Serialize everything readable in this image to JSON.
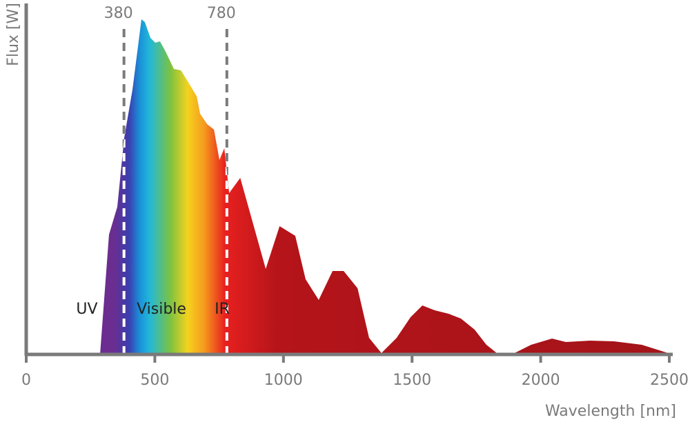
{
  "chart_data": {
    "type": "area",
    "x_label": "Wavelength [nm]",
    "y_label": "Flux [W]",
    "x": [
      287,
      322,
      354,
      381,
      413,
      448,
      461,
      483,
      502,
      520,
      542,
      574,
      601,
      628,
      663,
      676,
      703,
      730,
      751,
      770,
      789,
      832,
      931,
      985,
      1046,
      1086,
      1137,
      1191,
      1234,
      1288,
      1333,
      1381,
      1440,
      1494,
      1540,
      1588,
      1642,
      1690,
      1743,
      1789,
      1829,
      1888,
      1963,
      2044,
      2098,
      2192,
      2285,
      2393,
      2495
    ],
    "series": [
      {
        "name": "Flux",
        "color": "#a31419",
        "values": [
          0,
          34.8,
          42.8,
          62.8,
          76.8,
          97.2,
          96.4,
          91.8,
          90.4,
          90.8,
          87.8,
          82.8,
          82.4,
          79.2,
          74.8,
          69.8,
          66.8,
          65.2,
          56.4,
          59.8,
          46.8,
          51.2,
          24.8,
          37.2,
          34.4,
          21.8,
          15.8,
          24.2,
          24.2,
          19.2,
          4.8,
          0.4,
          4.8,
          10.8,
          14.2,
          12.8,
          11.8,
          10.4,
          7.2,
          2.8,
          0.4,
          0,
          2.8,
          4.6,
          3.6,
          4,
          3.8,
          2.8,
          0.4
        ]
      }
    ],
    "xlim": [
      0,
      2500
    ],
    "xticks": [
      0,
      500,
      1000,
      1500,
      2000,
      2500
    ],
    "ylim": [
      0,
      100
    ],
    "markers": [
      380,
      780
    ],
    "region_labels": [
      "UV",
      "Visible",
      "IR"
    ]
  }
}
